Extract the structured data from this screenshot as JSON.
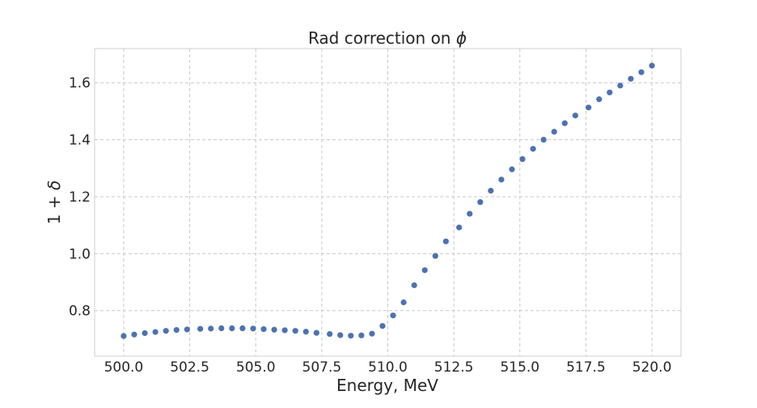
{
  "chart_data": {
    "type": "scatter",
    "title": "Rad correction on ",
    "title_symbol": "ϕ",
    "xlabel": "Energy, MeV",
    "ylabel_prefix": "1 + ",
    "ylabel_symbol": "δ",
    "xlim": [
      498.9,
      521.1
    ],
    "ylim": [
      0.64,
      1.72
    ],
    "xticks": [
      500.0,
      502.5,
      505.0,
      507.5,
      510.0,
      512.5,
      515.0,
      517.5,
      520.0
    ],
    "xtick_labels": [
      "500.0",
      "502.5",
      "505.0",
      "507.5",
      "510.0",
      "512.5",
      "515.0",
      "517.5",
      "520.0"
    ],
    "yticks": [
      0.8,
      1.0,
      1.2,
      1.4,
      1.6
    ],
    "ytick_labels": [
      "0.8",
      "1.0",
      "1.2",
      "1.4",
      "1.6"
    ],
    "grid": true,
    "color": "#4c72b0",
    "series": [
      {
        "x": [
          500.0,
          500.4,
          500.8,
          501.2,
          501.6,
          502.0,
          502.4,
          502.9,
          503.3,
          503.7,
          504.1,
          504.5,
          504.9,
          505.3,
          505.7,
          506.1,
          506.5,
          506.9,
          507.3,
          507.8,
          508.2,
          508.6,
          509.0,
          509.4,
          509.8,
          510.2,
          510.6,
          511.0,
          511.4,
          511.8,
          512.2,
          512.7,
          513.1,
          513.5,
          513.9,
          514.3,
          514.7,
          515.1,
          515.5,
          515.9,
          516.3,
          516.7,
          517.1,
          517.6,
          518.0,
          518.4,
          518.8,
          519.2,
          519.6,
          520.0
        ],
        "y": [
          0.711,
          0.716,
          0.721,
          0.725,
          0.729,
          0.732,
          0.734,
          0.736,
          0.737,
          0.738,
          0.738,
          0.738,
          0.737,
          0.735,
          0.733,
          0.731,
          0.729,
          0.726,
          0.722,
          0.718,
          0.714,
          0.712,
          0.713,
          0.719,
          0.746,
          0.783,
          0.829,
          0.889,
          0.942,
          0.992,
          1.043,
          1.092,
          1.14,
          1.181,
          1.221,
          1.26,
          1.296,
          1.332,
          1.368,
          1.4,
          1.428,
          1.458,
          1.485,
          1.513,
          1.542,
          1.566,
          1.59,
          1.614,
          1.637,
          1.66
        ]
      }
    ]
  }
}
